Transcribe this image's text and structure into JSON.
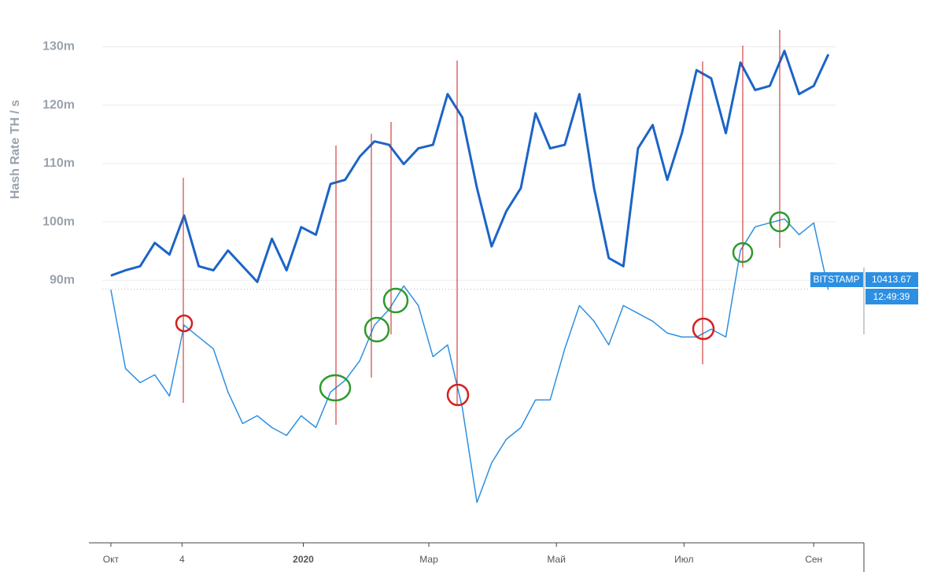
{
  "chart_data": {
    "type": "line",
    "ylabel": "Hash Rate TH / s",
    "x": [
      0,
      7,
      14,
      21,
      28,
      35,
      42,
      49,
      56,
      63,
      70,
      77,
      84,
      91,
      98,
      105,
      112,
      119,
      126,
      133,
      140,
      147,
      154,
      161,
      168,
      175,
      182,
      189,
      196,
      203,
      210,
      217,
      224,
      231,
      238,
      245,
      252,
      259,
      266,
      273,
      280,
      287,
      294,
      301,
      308,
      315,
      322,
      329,
      336,
      343
    ],
    "xlim": [
      -10.5,
      360
    ],
    "xticks": [
      {
        "value": 0,
        "label": "Окт"
      },
      {
        "value": 34,
        "label": "4"
      },
      {
        "value": 92,
        "label": "2020"
      },
      {
        "value": 152,
        "label": "Мар"
      },
      {
        "value": 213,
        "label": "Май"
      },
      {
        "value": 274,
        "label": "Июл"
      },
      {
        "value": 336,
        "label": "Сен"
      }
    ],
    "ylim": [
      45000000.0,
      136000000.0
    ],
    "yticks": [
      {
        "value": 90000000.0,
        "label": "90m"
      },
      {
        "value": 100000000.0,
        "label": "100m"
      },
      {
        "value": 110000000.0,
        "label": "110m"
      },
      {
        "value": 120000000.0,
        "label": "120m"
      },
      {
        "value": 130000000.0,
        "label": "130m"
      }
    ],
    "y2lim": [
      4300,
      17100
    ],
    "grid": true,
    "series": [
      {
        "color": "#1c64c8",
        "values": [
          90800000.0,
          91700000.0,
          92400000.0,
          96400000.0,
          94400000.0,
          101100000.0,
          92400000.0,
          91700000.0,
          95100000.0,
          92400000.0,
          89700000.0,
          97100000.0,
          91700000.0,
          99100000.0,
          97800000.0,
          106500000.0,
          107200000.0,
          111200000.0,
          113800000.0,
          113200000.0,
          109900000.0,
          112600000.0,
          113200000.0,
          121900000.0,
          117900000.0,
          105800000.0,
          95800000.0,
          101800000.0,
          105800000.0,
          118600000.0,
          112600000.0,
          113200000.0,
          121900000.0,
          105800000.0,
          93800000.0,
          92400000.0,
          112600000.0,
          116600000.0,
          107200000.0,
          115200000.0,
          126000000.0,
          124600000.0,
          115200000.0,
          127300000.0,
          122600000.0,
          123300000.0,
          129300000.0,
          121900000.0,
          123300000.0,
          128700000.0
        ]
      },
      {
        "name": "BITSTAMP",
        "axis": "y2",
        "color": "#2d8fe2",
        "last_value": 10413.67,
        "time_label": "12:49:39",
        "values": [
          10400,
          8502,
          8160,
          8350,
          7838,
          9546,
          9261,
          8977,
          7933,
          7174,
          7364,
          7079,
          6889,
          7364,
          7079,
          7933,
          8218,
          8692,
          9546,
          9926,
          10495,
          10020,
          8787,
          9071,
          7553,
          5275,
          6224,
          6794,
          7079,
          7743,
          7743,
          8977,
          10020,
          9641,
          9071,
          10020,
          9831,
          9641,
          9356,
          9261,
          9261,
          9451,
          9261,
          11349,
          11918,
          12013,
          12108,
          11728,
          12013,
          10400
        ]
      }
    ]
  }
}
